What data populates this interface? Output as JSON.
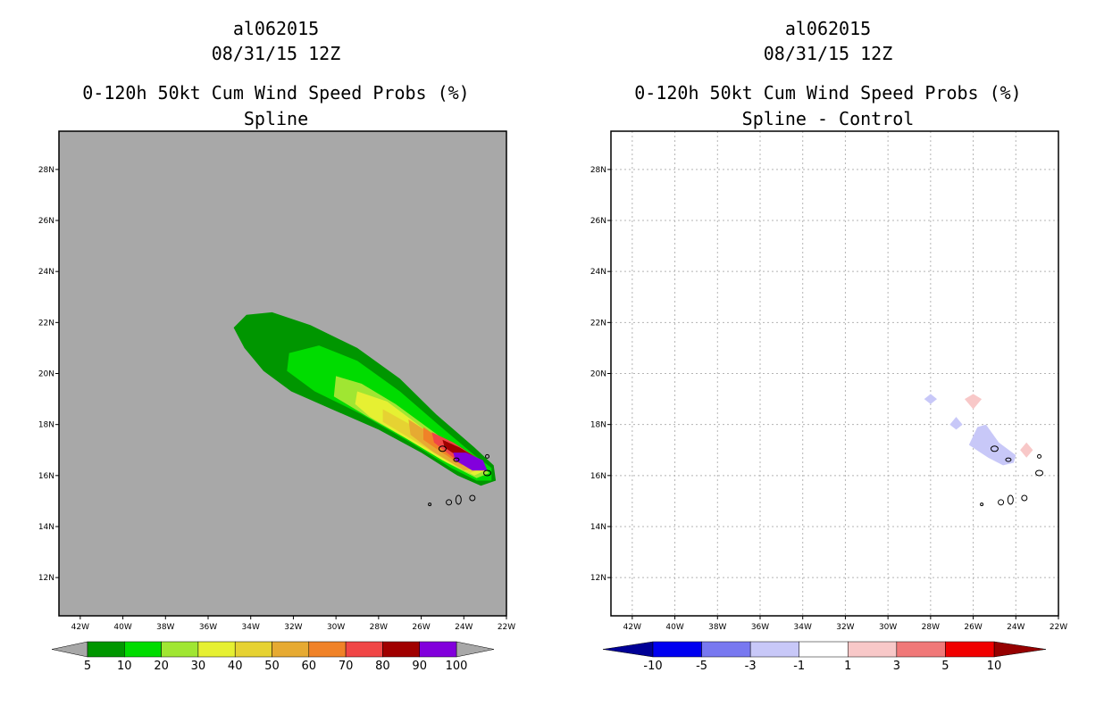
{
  "chart_data": [
    {
      "type": "map-contour",
      "storm_id": "al062015",
      "datetime": "08/31/15 12Z",
      "title": "0-120h 50kt Cum Wind Speed Probs (%)",
      "subtitle": "Spline",
      "lon_range": [
        -43,
        -22
      ],
      "lat_range": [
        10.5,
        29.5
      ],
      "lon_ticks": [
        "42W",
        "40W",
        "38W",
        "36W",
        "34W",
        "32W",
        "30W",
        "28W",
        "26W",
        "24W",
        "22W"
      ],
      "lat_ticks": [
        "12N",
        "14N",
        "16N",
        "18N",
        "20N",
        "22N",
        "24N",
        "26N",
        "28N"
      ],
      "background_color": "#a8a8a8",
      "grid": false,
      "colorbar": {
        "labels": [
          "5",
          "10",
          "20",
          "30",
          "40",
          "50",
          "60",
          "70",
          "80",
          "90",
          "100"
        ],
        "colors": [
          "#009600",
          "#00dc00",
          "#a0e632",
          "#e6f032",
          "#e6d232",
          "#e6aa32",
          "#f08228",
          "#f04646",
          "#a00000",
          "#8200dc"
        ]
      },
      "levels": [
        {
          "value": 5,
          "color": "#009600",
          "points": [
            [
              -34.8,
              21.8
            ],
            [
              -34.2,
              22.3
            ],
            [
              -33.0,
              22.4
            ],
            [
              -31.2,
              21.9
            ],
            [
              -29.0,
              21.0
            ],
            [
              -27.0,
              19.8
            ],
            [
              -25.3,
              18.4
            ],
            [
              -23.5,
              17.1
            ],
            [
              -22.6,
              16.4
            ],
            [
              -22.5,
              15.8
            ],
            [
              -23.2,
              15.6
            ],
            [
              -24.3,
              16.0
            ],
            [
              -26.0,
              16.9
            ],
            [
              -28.0,
              17.8
            ],
            [
              -30.2,
              18.6
            ],
            [
              -32.1,
              19.3
            ],
            [
              -33.4,
              20.1
            ],
            [
              -34.3,
              21.0
            ]
          ]
        },
        {
          "value": 10,
          "color": "#00dc00",
          "points": [
            [
              -32.2,
              20.8
            ],
            [
              -30.8,
              21.1
            ],
            [
              -29.0,
              20.5
            ],
            [
              -27.0,
              19.3
            ],
            [
              -25.2,
              18.0
            ],
            [
              -23.5,
              16.8
            ],
            [
              -22.7,
              16.3
            ],
            [
              -22.7,
              15.8
            ],
            [
              -23.4,
              15.8
            ],
            [
              -24.6,
              16.3
            ],
            [
              -26.5,
              17.3
            ],
            [
              -28.8,
              18.4
            ],
            [
              -31.0,
              19.3
            ],
            [
              -32.3,
              20.1
            ]
          ]
        },
        {
          "value": 20,
          "color": "#a0e632",
          "points": [
            [
              -30.0,
              19.9
            ],
            [
              -28.8,
              19.6
            ],
            [
              -27.2,
              18.8
            ],
            [
              -25.4,
              17.7
            ],
            [
              -23.6,
              16.6
            ],
            [
              -22.8,
              16.1
            ],
            [
              -23.4,
              15.9
            ],
            [
              -24.8,
              16.5
            ],
            [
              -26.6,
              17.4
            ],
            [
              -28.5,
              18.3
            ],
            [
              -30.1,
              19.1
            ]
          ]
        },
        {
          "value": 30,
          "color": "#e6f032",
          "points": [
            [
              -29.0,
              19.3
            ],
            [
              -27.6,
              18.9
            ],
            [
              -26.0,
              17.9
            ],
            [
              -24.2,
              16.8
            ],
            [
              -23.0,
              16.2
            ],
            [
              -23.5,
              16.0
            ],
            [
              -25.0,
              16.6
            ],
            [
              -26.8,
              17.5
            ],
            [
              -28.4,
              18.3
            ],
            [
              -29.1,
              18.8
            ]
          ]
        },
        {
          "value": 40,
          "color": "#e6d232",
          "points": [
            [
              -27.8,
              18.6
            ],
            [
              -26.3,
              17.9
            ],
            [
              -24.6,
              17.0
            ],
            [
              -23.2,
              16.3
            ],
            [
              -23.7,
              16.1
            ],
            [
              -25.2,
              16.8
            ],
            [
              -26.8,
              17.6
            ],
            [
              -27.8,
              18.1
            ]
          ]
        },
        {
          "value": 50,
          "color": "#e6aa32",
          "points": [
            [
              -26.6,
              18.2
            ],
            [
              -25.1,
              17.4
            ],
            [
              -23.8,
              16.7
            ],
            [
              -23.3,
              16.3
            ],
            [
              -24.0,
              16.2
            ],
            [
              -25.4,
              16.9
            ],
            [
              -26.5,
              17.6
            ]
          ]
        },
        {
          "value": 60,
          "color": "#f08228",
          "points": [
            [
              -25.9,
              17.9
            ],
            [
              -24.7,
              17.2
            ],
            [
              -23.5,
              16.6
            ],
            [
              -24.1,
              16.4
            ],
            [
              -25.2,
              17.0
            ],
            [
              -25.9,
              17.4
            ]
          ]
        },
        {
          "value": 70,
          "color": "#f04646",
          "points": [
            [
              -25.5,
              17.7
            ],
            [
              -24.5,
              17.3
            ],
            [
              -23.4,
              16.7
            ],
            [
              -23.0,
              16.2
            ],
            [
              -23.6,
              16.2
            ],
            [
              -24.5,
              16.7
            ],
            [
              -25.4,
              17.3
            ]
          ]
        },
        {
          "value": 80,
          "color": "#a00000",
          "points": [
            [
              -25.0,
              17.4
            ],
            [
              -24.2,
              17.1
            ],
            [
              -23.4,
              16.7
            ],
            [
              -23.3,
              16.4
            ],
            [
              -24.0,
              16.6
            ],
            [
              -24.9,
              17.1
            ]
          ]
        },
        {
          "value": 90,
          "color": "#8200dc",
          "points": [
            [
              -24.5,
              16.9
            ],
            [
              -23.9,
              16.9
            ],
            [
              -23.1,
              16.6
            ],
            [
              -22.9,
              16.2
            ],
            [
              -23.6,
              16.2
            ],
            [
              -24.4,
              16.6
            ]
          ]
        }
      ]
    },
    {
      "type": "map-contour",
      "storm_id": "al062015",
      "datetime": "08/31/15 12Z",
      "title": "0-120h 50kt Cum Wind Speed Probs (%)",
      "subtitle": "Spline - Control",
      "lon_range": [
        -43,
        -22
      ],
      "lat_range": [
        10.5,
        29.5
      ],
      "lon_ticks": [
        "42W",
        "40W",
        "38W",
        "36W",
        "34W",
        "32W",
        "30W",
        "28W",
        "26W",
        "24W",
        "22W"
      ],
      "lat_ticks": [
        "12N",
        "14N",
        "16N",
        "18N",
        "20N",
        "22N",
        "24N",
        "26N",
        "28N"
      ],
      "background_color": "#ffffff",
      "grid": true,
      "colorbar": {
        "labels": [
          "-10",
          "-5",
          "-3",
          "-1",
          "1",
          "3",
          "5",
          "10"
        ],
        "colors": [
          "#000096",
          "#0000f0",
          "#7878f0",
          "#c8c8f8",
          "#ffffff",
          "#f8c8c8",
          "#f07878",
          "#f00000",
          "#960000"
        ]
      },
      "levels": [
        {
          "value": -3,
          "color": "#c8c8f8",
          "points": [
            [
              -28.3,
              19.0
            ],
            [
              -28.0,
              19.2
            ],
            [
              -27.7,
              19.0
            ],
            [
              -28.0,
              18.8
            ]
          ]
        },
        {
          "value": -3,
          "color": "#c8c8f8",
          "points": [
            [
              -27.1,
              18.0
            ],
            [
              -26.8,
              18.3
            ],
            [
              -26.5,
              18.0
            ],
            [
              -26.8,
              17.8
            ]
          ]
        },
        {
          "value": -3,
          "color": "#c8c8f8",
          "points": [
            [
              -26.2,
              17.2
            ],
            [
              -25.8,
              17.9
            ],
            [
              -25.4,
              18.0
            ],
            [
              -24.8,
              17.3
            ],
            [
              -24.0,
              16.8
            ],
            [
              -24.1,
              16.5
            ],
            [
              -24.6,
              16.4
            ],
            [
              -25.3,
              16.7
            ]
          ]
        },
        {
          "value": 1,
          "color": "#f8c8c8",
          "points": [
            [
              -26.4,
              19.0
            ],
            [
              -26.0,
              19.2
            ],
            [
              -25.6,
              19.0
            ],
            [
              -26.0,
              18.6
            ]
          ]
        },
        {
          "value": 1,
          "color": "#f8c8c8",
          "points": [
            [
              -23.8,
              17.0
            ],
            [
              -23.5,
              17.3
            ],
            [
              -23.2,
              17.0
            ],
            [
              -23.5,
              16.7
            ]
          ]
        }
      ]
    }
  ]
}
